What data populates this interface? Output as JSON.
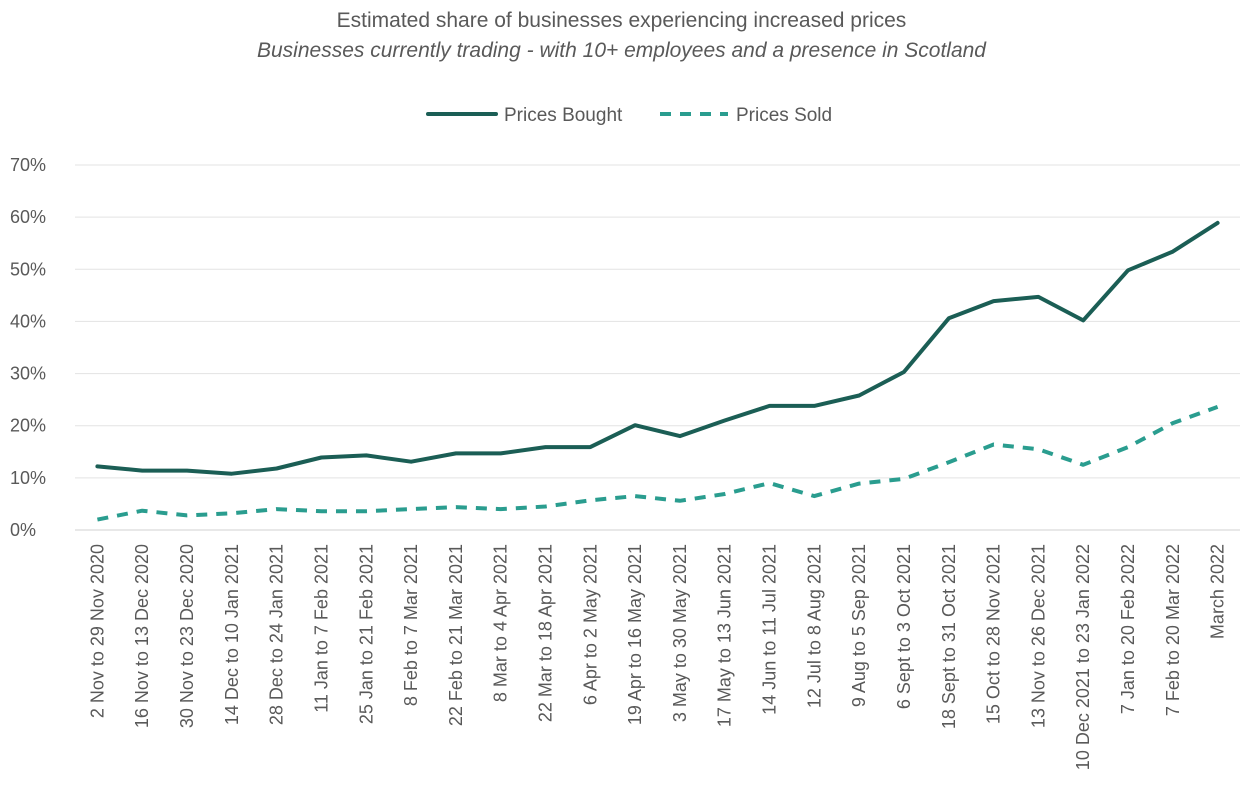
{
  "chart_data": {
    "type": "line",
    "title": "Estimated share of businesses experiencing increased prices",
    "subtitle": "Businesses currently trading - with 10+ employees and a presence in Scotland",
    "xlabel": "",
    "ylabel": "",
    "ylim": [
      0,
      70
    ],
    "y_tick_step": 10,
    "y_tick_format": "percent",
    "grid": true,
    "legend_position": "top-center",
    "categories": [
      "2 Nov to 29 Nov 2020",
      "16 Nov to 13 Dec 2020",
      "30 Nov to 23 Dec 2020",
      "14 Dec to 10 Jan 2021",
      "28 Dec to 24 Jan 2021",
      "11 Jan to 7 Feb 2021",
      "25 Jan to 21 Feb 2021",
      "8 Feb to 7 Mar 2021",
      "22 Feb to 21 Mar 2021",
      "8 Mar to 4 Apr 2021",
      "22 Mar to 18 Apr 2021",
      "6 Apr to 2 May 2021",
      "19 Apr to 16 May 2021",
      "3 May to 30 May 2021",
      "17 May to 13 Jun 2021",
      "14 Jun to 11 Jul 2021",
      "12 Jul to 8 Aug 2021",
      "9 Aug to 5 Sep 2021",
      "6 Sept to 3 Oct 2021",
      "18 Sept to 31 Oct 2021",
      "15 Oct to 28 Nov 2021",
      "13 Nov to 26 Dec 2021",
      "10 Dec 2021 to 23 Jan 2022",
      "7 Jan to 20 Feb 2022",
      "7 Feb to 20 Mar 2022",
      "March 2022"
    ],
    "series": [
      {
        "name": "Prices Bought",
        "color": "#1b5e55",
        "style": "solid",
        "values": [
          12.2,
          11.4,
          11.4,
          10.8,
          11.8,
          13.9,
          14.3,
          13.1,
          14.7,
          14.7,
          15.9,
          15.9,
          20.1,
          18.0,
          21.0,
          23.8,
          23.8,
          25.8,
          30.3,
          40.6,
          43.9,
          44.7,
          40.2,
          49.8,
          53.4,
          58.9
        ]
      },
      {
        "name": "Prices Sold",
        "color": "#2a9d8f",
        "style": "dashed",
        "values": [
          2.0,
          3.7,
          2.8,
          3.2,
          4.0,
          3.6,
          3.6,
          4.0,
          4.4,
          4.0,
          4.5,
          5.7,
          6.5,
          5.6,
          6.9,
          9.0,
          6.5,
          8.9,
          9.8,
          13.0,
          16.4,
          15.5,
          12.5,
          15.9,
          20.5,
          23.6
        ]
      }
    ]
  }
}
